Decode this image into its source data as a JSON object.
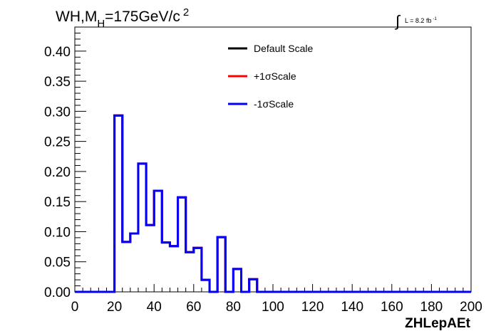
{
  "chart_data": {
    "type": "line",
    "title": "WH,M",
    "title_sub": "H",
    "title_rest": "=175GeV/c",
    "title_sup": "2",
    "lumi_label": "L = 8.2 fb",
    "lumi_sup": "-1",
    "xlabel": "ZHLepAEt",
    "ylabel": "",
    "xlim": [
      0,
      200
    ],
    "ylim": [
      0,
      0.44
    ],
    "x_ticks": [
      0,
      20,
      40,
      60,
      80,
      100,
      120,
      140,
      160,
      180,
      200
    ],
    "x_tick_labels": [
      "0",
      "20",
      "40",
      "60",
      "80",
      "100",
      "120",
      "140",
      "160",
      "180",
      "200"
    ],
    "y_ticks": [
      0,
      0.05,
      0.1,
      0.15,
      0.2,
      0.25,
      0.3,
      0.35,
      0.4
    ],
    "y_tick_labels": [
      "0.00",
      "0.05",
      "0.10",
      "0.15",
      "0.20",
      "0.25",
      "0.30",
      "0.35",
      "0.40"
    ],
    "bin_edges": [
      0,
      4,
      8,
      12,
      16,
      20,
      24,
      28,
      32,
      36,
      40,
      44,
      48,
      52,
      56,
      60,
      64,
      68,
      72,
      76,
      80,
      84,
      88,
      92,
      96,
      100,
      104,
      108,
      112,
      116,
      120,
      124,
      128,
      132,
      136,
      140,
      144,
      148,
      152,
      156,
      160,
      164,
      168,
      172,
      176,
      180,
      184,
      188,
      192,
      196,
      200
    ],
    "series": [
      {
        "name": "Default Scale",
        "color": "#000000",
        "values": [
          0,
          0,
          0,
          0,
          0,
          0.293,
          0.083,
          0.097,
          0.213,
          0.111,
          0.168,
          0.082,
          0.076,
          0.157,
          0.066,
          0.073,
          0.02,
          0,
          0.091,
          0,
          0.038,
          0,
          0.021,
          0,
          0,
          0,
          0,
          0,
          0,
          0,
          0,
          0,
          0,
          0,
          0,
          0,
          0,
          0,
          0,
          0,
          0,
          0,
          0,
          0,
          0,
          0,
          0,
          0,
          0,
          0
        ]
      },
      {
        "name": "+1σScale",
        "color": "#ff0000",
        "values": [
          0,
          0,
          0,
          0,
          0,
          0.293,
          0.083,
          0.097,
          0.213,
          0.111,
          0.168,
          0.082,
          0.076,
          0.157,
          0.066,
          0.073,
          0.02,
          0,
          0.091,
          0,
          0.038,
          0,
          0.021,
          0,
          0,
          0,
          0,
          0,
          0,
          0,
          0,
          0,
          0,
          0,
          0,
          0,
          0,
          0,
          0,
          0,
          0,
          0,
          0,
          0,
          0,
          0,
          0,
          0,
          0,
          0
        ]
      },
      {
        "name": "-1σScale",
        "color": "#0000ff",
        "values": [
          0,
          0,
          0,
          0,
          0,
          0.293,
          0.083,
          0.097,
          0.213,
          0.111,
          0.168,
          0.082,
          0.076,
          0.157,
          0.066,
          0.073,
          0.02,
          0,
          0.091,
          0,
          0.038,
          0,
          0.021,
          0,
          0,
          0,
          0,
          0,
          0,
          0,
          0,
          0,
          0,
          0,
          0,
          0,
          0,
          0,
          0,
          0,
          0,
          0,
          0,
          0,
          0,
          0,
          0,
          0,
          0,
          0
        ]
      }
    ],
    "legend_placement": "top-center",
    "grid": false
  }
}
